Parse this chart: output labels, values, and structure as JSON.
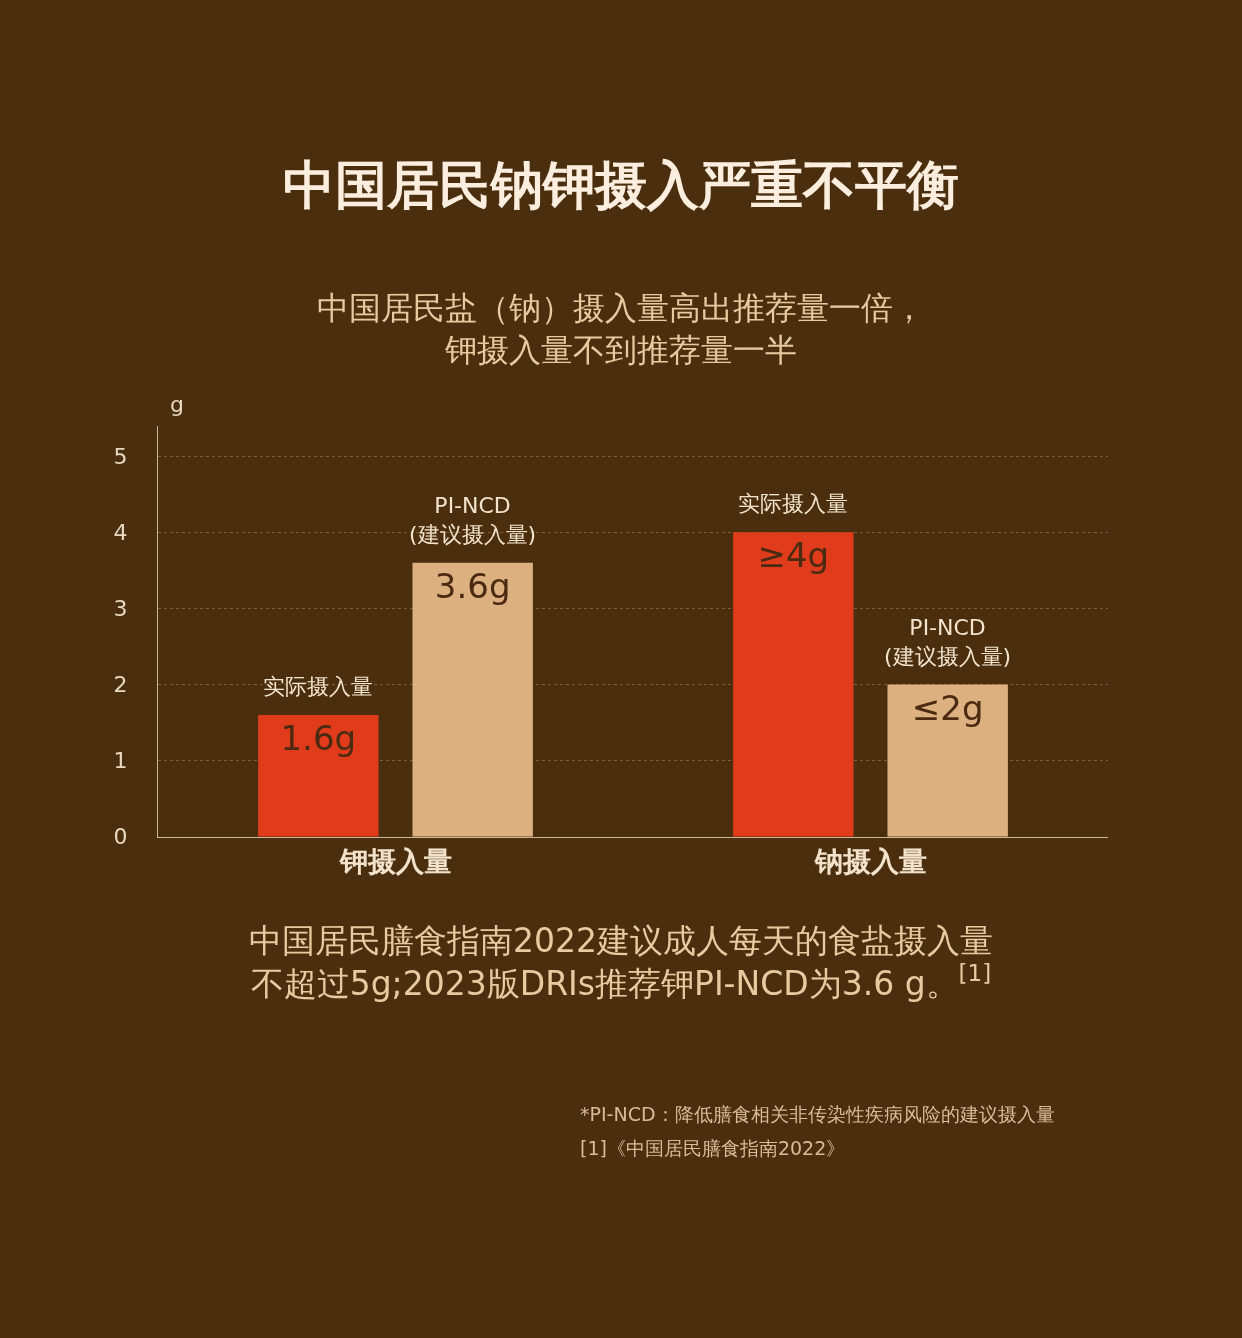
{
  "chart_data": {
    "type": "bar",
    "title": "中国居民钠钾摄入严重不平衡",
    "subtitle": "中国居民盐（钠）摄入量高出推荐量一倍，钾摄入量不到推荐量一半",
    "ylabel": "g",
    "categories": [
      "钾摄入量",
      "钠摄入量"
    ],
    "series": [
      {
        "name": "实际摄入量",
        "color": "#e03c1c",
        "values": [
          1.6,
          4
        ],
        "value_labels": [
          "1.6g",
          "≥4g"
        ]
      },
      {
        "name": "PI-NCD\n(建议摄入量)",
        "color": "#ddb080",
        "values": [
          3.6,
          2
        ],
        "value_labels": [
          "3.6g",
          "≤2g"
        ]
      }
    ],
    "ylim": [
      0,
      5.4
    ],
    "yticks": [
      0,
      1,
      2,
      3,
      4,
      5
    ],
    "grid": "y",
    "legend": false,
    "annotations": [
      "中国居民膳食指南2022建议成人每天的食盐摄入量不超过5g;2023版DRIs推荐钾PI-NCD为3.6 g。$^{[1]}$",
      "*PI-NCD：降低膳食相关非传染性疾病风险的建议摄入量",
      "[1]《中国居民膳食指南2022》"
    ]
  }
}
